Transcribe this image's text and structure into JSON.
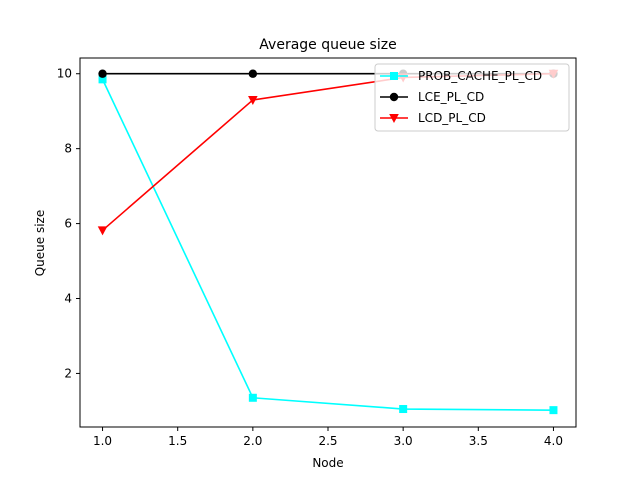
{
  "chart_data": {
    "type": "line",
    "title": "Average queue size",
    "xlabel": "Node",
    "ylabel": "Queue size",
    "xlim": [
      0.85,
      4.15
    ],
    "ylim": [
      0.57,
      10.42
    ],
    "x_ticks": [
      1.0,
      1.5,
      2.0,
      2.5,
      3.0,
      3.5,
      4.0
    ],
    "x_tick_labels": [
      "1.0",
      "1.5",
      "2.0",
      "2.5",
      "3.0",
      "3.5",
      "4.0"
    ],
    "y_ticks": [
      2,
      4,
      6,
      8,
      10
    ],
    "y_tick_labels": [
      "2",
      "4",
      "6",
      "8",
      "10"
    ],
    "grid": false,
    "legend_position": "top-right",
    "x": [
      1.0,
      2.0,
      3.0,
      4.0
    ],
    "series": [
      {
        "name": "PROB_CACHE_PL_CD",
        "values": [
          9.85,
          1.35,
          1.05,
          1.02
        ],
        "color": "#00ffff",
        "marker": "square"
      },
      {
        "name": "LCE_PL_CD",
        "values": [
          10.0,
          10.0,
          10.0,
          10.0
        ],
        "color": "#000000",
        "marker": "circle"
      },
      {
        "name": "LCD_PL_CD",
        "values": [
          5.82,
          9.3,
          9.9,
          10.0
        ],
        "color": "#ff0000",
        "marker": "triangle-down"
      }
    ]
  }
}
